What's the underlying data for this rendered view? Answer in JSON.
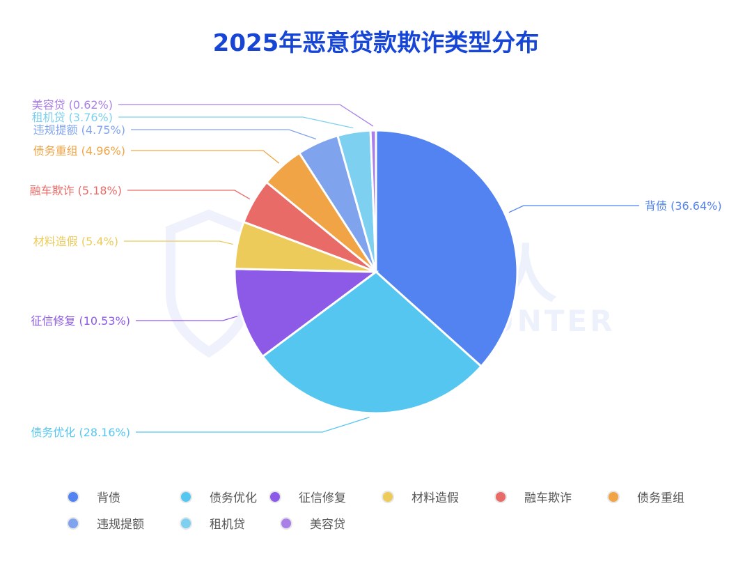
{
  "chart_data": {
    "type": "pie",
    "title": "2025年恶意贷款欺诈类型分布",
    "categories": [
      "背债",
      "债务优化",
      "征信修复",
      "材料造假",
      "融车欺诈",
      "债务重组",
      "违规提额",
      "租机贷",
      "美容贷"
    ],
    "values": [
      36.64,
      28.16,
      10.53,
      5.4,
      5.18,
      4.96,
      4.75,
      3.76,
      0.62
    ],
    "labels": [
      "背债 (36.64%)",
      "债务优化 (28.16%)",
      "征信修复 (10.53%)",
      "材料造假 (5.4%)",
      "融车欺诈 (5.18%)",
      "债务重组 (4.96%)",
      "违规提额 (4.75%)",
      "租机贷 (3.76%)",
      "美容贷 (0.62%)"
    ],
    "colors": [
      "#5283f0",
      "#55c6f0",
      "#8d5ae8",
      "#eccb5a",
      "#e96b67",
      "#f0a445",
      "#80a3ee",
      "#7dd0ef",
      "#a97fe8"
    ],
    "start": "top",
    "direction": "clockwise",
    "legend": "bottom"
  },
  "watermark": {
    "cn": "威胁猎人",
    "en": "THREAT HUNTER"
  }
}
